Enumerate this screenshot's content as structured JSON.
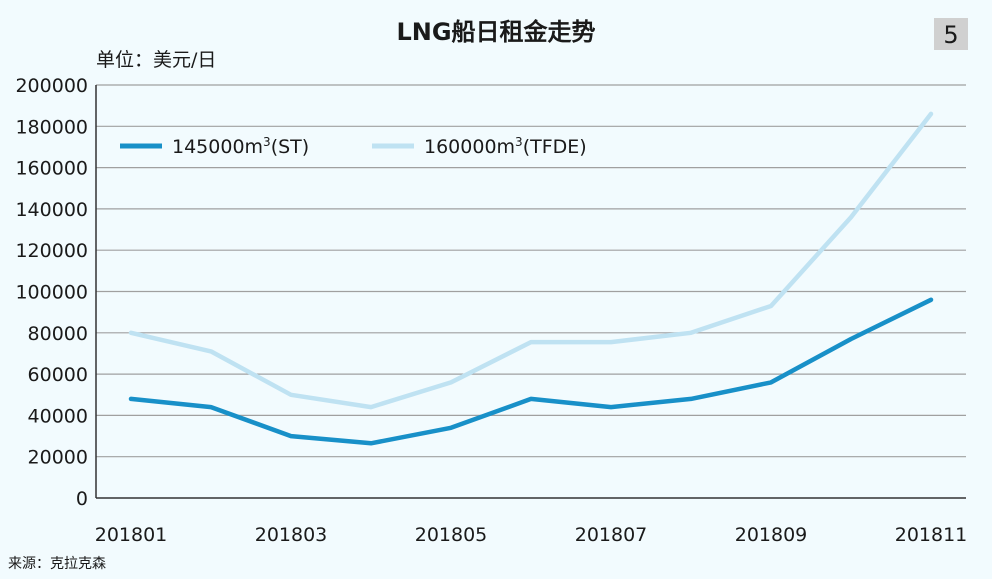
{
  "header": {
    "title": "LNG船日租金走势",
    "badge": "5",
    "unit": "单位：美元/日"
  },
  "footer": {
    "source": "来源：克拉克森"
  },
  "colors": {
    "background": "#f2fbfe",
    "grid": "#a0a0a0",
    "series_dark": "#1890c8",
    "series_light": "#bfe2f2",
    "badge": "#d0d0d0"
  },
  "chart_data": {
    "type": "line",
    "x": [
      "201801",
      "201802",
      "201803",
      "201804",
      "201805",
      "201806",
      "201807",
      "201808",
      "201809",
      "201810",
      "201811"
    ],
    "x_tick_labels": [
      "201801",
      "201803",
      "201805",
      "201807",
      "201809",
      "201811"
    ],
    "y_tick_labels": [
      "0",
      "20000",
      "40000",
      "60000",
      "80000",
      "100000",
      "120000",
      "140000",
      "160000",
      "180000",
      "200000"
    ],
    "ylim": [
      0,
      200000
    ],
    "grid": true,
    "legend_position": "top-left",
    "series": [
      {
        "name": "145000m³(ST)",
        "name_base": "145000m",
        "name_sup": "3",
        "name_suffix": "(ST)",
        "color": "#1890c8",
        "values": [
          48000,
          44000,
          30000,
          26500,
          34000,
          48000,
          44000,
          48000,
          56000,
          77000,
          96000
        ]
      },
      {
        "name": "160000m³(TFDE)",
        "name_base": "160000m",
        "name_sup": "3",
        "name_suffix": "(TFDE)",
        "color": "#bfe2f2",
        "values": [
          80000,
          71000,
          50000,
          44000,
          56000,
          75500,
          75500,
          80000,
          93000,
          136000,
          186000
        ]
      }
    ]
  }
}
